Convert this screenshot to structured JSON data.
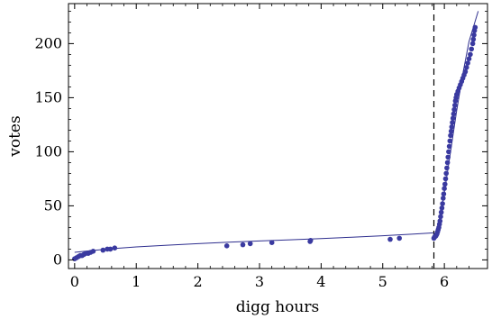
{
  "chart_data": {
    "type": "scatter",
    "xlabel": "digg hours",
    "ylabel": "votes",
    "xlim": [
      -0.1,
      6.7
    ],
    "ylim": [
      -8,
      237
    ],
    "x_ticks": [
      0,
      1,
      2,
      3,
      4,
      5,
      6
    ],
    "y_ticks": [
      0,
      50,
      100,
      150,
      200
    ],
    "colors": {
      "points": "#3a3aa0",
      "curve": "#2e2e8e",
      "axis": "#000000"
    },
    "grid": false,
    "legend": "none",
    "vertical_marker": {
      "x": 5.83,
      "style": "dashed"
    },
    "points": [
      [
        0.0,
        1
      ],
      [
        0.03,
        2
      ],
      [
        0.06,
        3
      ],
      [
        0.09,
        4
      ],
      [
        0.12,
        4
      ],
      [
        0.15,
        5
      ],
      [
        0.18,
        6
      ],
      [
        0.22,
        6
      ],
      [
        0.26,
        7
      ],
      [
        0.3,
        8
      ],
      [
        0.46,
        9
      ],
      [
        0.53,
        10
      ],
      [
        0.58,
        10
      ],
      [
        0.65,
        11
      ],
      [
        2.47,
        13
      ],
      [
        2.73,
        14
      ],
      [
        2.85,
        15
      ],
      [
        3.2,
        16
      ],
      [
        3.82,
        17
      ],
      [
        3.83,
        18
      ],
      [
        5.12,
        19
      ],
      [
        5.27,
        20
      ],
      [
        5.83,
        20
      ],
      [
        5.84,
        21
      ],
      [
        5.85,
        22
      ],
      [
        5.86,
        22
      ],
      [
        5.87,
        23
      ],
      [
        5.88,
        24
      ],
      [
        5.89,
        26
      ],
      [
        5.9,
        28
      ],
      [
        5.91,
        30
      ],
      [
        5.92,
        33
      ],
      [
        5.93,
        36
      ],
      [
        5.94,
        40
      ],
      [
        5.95,
        44
      ],
      [
        5.96,
        48
      ],
      [
        5.97,
        52
      ],
      [
        5.98,
        57
      ],
      [
        5.99,
        61
      ],
      [
        6.0,
        66
      ],
      [
        6.01,
        70
      ],
      [
        6.02,
        75
      ],
      [
        6.03,
        80
      ],
      [
        6.04,
        85
      ],
      [
        6.05,
        90
      ],
      [
        6.06,
        95
      ],
      [
        6.07,
        100
      ],
      [
        6.08,
        105
      ],
      [
        6.09,
        110
      ],
      [
        6.1,
        115
      ],
      [
        6.11,
        119
      ],
      [
        6.12,
        123
      ],
      [
        6.13,
        127
      ],
      [
        6.14,
        131
      ],
      [
        6.15,
        135
      ],
      [
        6.16,
        139
      ],
      [
        6.17,
        143
      ],
      [
        6.18,
        147
      ],
      [
        6.19,
        150
      ],
      [
        6.2,
        153
      ],
      [
        6.22,
        156
      ],
      [
        6.24,
        159
      ],
      [
        6.26,
        162
      ],
      [
        6.28,
        165
      ],
      [
        6.3,
        168
      ],
      [
        6.32,
        171
      ],
      [
        6.34,
        174
      ],
      [
        6.36,
        178
      ],
      [
        6.38,
        182
      ],
      [
        6.4,
        186
      ],
      [
        6.42,
        190
      ],
      [
        6.44,
        195
      ],
      [
        6.46,
        200
      ],
      [
        6.47,
        204
      ],
      [
        6.48,
        208
      ],
      [
        6.49,
        212
      ],
      [
        6.5,
        215
      ]
    ],
    "fit_curves": [
      {
        "points": [
          [
            0.0,
            7
          ],
          [
            0.25,
            8.5
          ],
          [
            0.5,
            9.8
          ],
          [
            0.75,
            11
          ],
          [
            1.0,
            12
          ],
          [
            1.5,
            13.6
          ],
          [
            2.0,
            15
          ],
          [
            2.5,
            16.3
          ],
          [
            3.0,
            17.5
          ],
          [
            3.5,
            18.6
          ],
          [
            4.0,
            19.7
          ],
          [
            4.5,
            21
          ],
          [
            5.0,
            22.3
          ],
          [
            5.5,
            23.8
          ],
          [
            5.83,
            25
          ]
        ]
      },
      {
        "points": [
          [
            5.83,
            19
          ],
          [
            5.9,
            30
          ],
          [
            6.0,
            62
          ],
          [
            6.1,
            100
          ],
          [
            6.2,
            138
          ],
          [
            6.3,
            172
          ],
          [
            6.4,
            202
          ],
          [
            6.55,
            230
          ]
        ]
      }
    ]
  }
}
